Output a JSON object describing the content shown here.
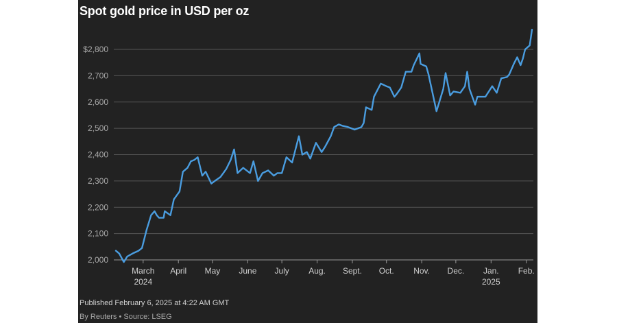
{
  "chart_data": {
    "type": "line",
    "title": "Spot gold price in USD per oz",
    "y_ticks": [
      "2,000",
      "2,100",
      "2,200",
      "2,300",
      "2,400",
      "2,500",
      "2,600",
      "2,700",
      "$2,800"
    ],
    "ylim": [
      2000,
      2800
    ],
    "x_range": [
      "2024-02-06",
      "2025-02-06"
    ],
    "month_ticks": [
      {
        "date": "2024-03-01",
        "label": "March",
        "sub": "2024"
      },
      {
        "date": "2024-04-01",
        "label": "April"
      },
      {
        "date": "2024-05-01",
        "label": "May"
      },
      {
        "date": "2024-06-01",
        "label": "June"
      },
      {
        "date": "2024-07-01",
        "label": "July"
      },
      {
        "date": "2024-08-01",
        "label": "Aug."
      },
      {
        "date": "2024-09-01",
        "label": "Sept."
      },
      {
        "date": "2024-10-01",
        "label": "Oct."
      },
      {
        "date": "2024-11-01",
        "label": "Nov."
      },
      {
        "date": "2024-12-01",
        "label": "Dec."
      },
      {
        "date": "2025-01-01",
        "label": "Jan.",
        "sub": "2025"
      },
      {
        "date": "2025-02-01",
        "label": "Feb."
      }
    ],
    "grid": "horizontal",
    "line_color": "#4a9de0",
    "series": [
      {
        "name": "",
        "points": [
          [
            "2024-02-06",
            2035
          ],
          [
            "2024-02-09",
            2024
          ],
          [
            "2024-02-13",
            1992
          ],
          [
            "2024-02-16",
            2013
          ],
          [
            "2024-02-21",
            2025
          ],
          [
            "2024-02-26",
            2035
          ],
          [
            "2024-02-29",
            2045
          ],
          [
            "2024-03-04",
            2114
          ],
          [
            "2024-03-08",
            2170
          ],
          [
            "2024-03-11",
            2185
          ],
          [
            "2024-03-13",
            2170
          ],
          [
            "2024-03-15",
            2160
          ],
          [
            "2024-03-19",
            2160
          ],
          [
            "2024-03-20",
            2185
          ],
          [
            "2024-03-25",
            2170
          ],
          [
            "2024-03-28",
            2230
          ],
          [
            "2024-04-02",
            2260
          ],
          [
            "2024-04-05",
            2335
          ],
          [
            "2024-04-09",
            2350
          ],
          [
            "2024-04-12",
            2375
          ],
          [
            "2024-04-15",
            2380
          ],
          [
            "2024-04-18",
            2390
          ],
          [
            "2024-04-22",
            2320
          ],
          [
            "2024-04-25",
            2335
          ],
          [
            "2024-04-30",
            2290
          ],
          [
            "2024-05-03",
            2300
          ],
          [
            "2024-05-08",
            2315
          ],
          [
            "2024-05-13",
            2345
          ],
          [
            "2024-05-17",
            2380
          ],
          [
            "2024-05-20",
            2420
          ],
          [
            "2024-05-23",
            2330
          ],
          [
            "2024-05-28",
            2350
          ],
          [
            "2024-06-03",
            2330
          ],
          [
            "2024-06-06",
            2375
          ],
          [
            "2024-06-10",
            2300
          ],
          [
            "2024-06-14",
            2330
          ],
          [
            "2024-06-19",
            2340
          ],
          [
            "2024-06-24",
            2320
          ],
          [
            "2024-06-27",
            2330
          ],
          [
            "2024-07-01",
            2330
          ],
          [
            "2024-07-05",
            2390
          ],
          [
            "2024-07-10",
            2370
          ],
          [
            "2024-07-16",
            2470
          ],
          [
            "2024-07-19",
            2400
          ],
          [
            "2024-07-23",
            2410
          ],
          [
            "2024-07-26",
            2385
          ],
          [
            "2024-07-31",
            2445
          ],
          [
            "2024-08-05",
            2410
          ],
          [
            "2024-08-08",
            2430
          ],
          [
            "2024-08-13",
            2470
          ],
          [
            "2024-08-16",
            2505
          ],
          [
            "2024-08-20",
            2515
          ],
          [
            "2024-08-23",
            2510
          ],
          [
            "2024-08-28",
            2505
          ],
          [
            "2024-09-03",
            2495
          ],
          [
            "2024-09-06",
            2500
          ],
          [
            "2024-09-09",
            2505
          ],
          [
            "2024-09-11",
            2520
          ],
          [
            "2024-09-13",
            2580
          ],
          [
            "2024-09-18",
            2570
          ],
          [
            "2024-09-20",
            2620
          ],
          [
            "2024-09-26",
            2670
          ],
          [
            "2024-10-01",
            2660
          ],
          [
            "2024-10-04",
            2655
          ],
          [
            "2024-10-08",
            2620
          ],
          [
            "2024-10-10",
            2630
          ],
          [
            "2024-10-14",
            2655
          ],
          [
            "2024-10-18",
            2715
          ],
          [
            "2024-10-23",
            2715
          ],
          [
            "2024-10-25",
            2740
          ],
          [
            "2024-10-30",
            2785
          ],
          [
            "2024-10-31",
            2745
          ],
          [
            "2024-11-05",
            2735
          ],
          [
            "2024-11-07",
            2705
          ],
          [
            "2024-11-08",
            2685
          ],
          [
            "2024-11-14",
            2565
          ],
          [
            "2024-11-20",
            2650
          ],
          [
            "2024-11-22",
            2710
          ],
          [
            "2024-11-26",
            2625
          ],
          [
            "2024-11-29",
            2640
          ],
          [
            "2024-12-05",
            2635
          ],
          [
            "2024-12-09",
            2660
          ],
          [
            "2024-12-11",
            2715
          ],
          [
            "2024-12-13",
            2650
          ],
          [
            "2024-12-18",
            2590
          ],
          [
            "2024-12-20",
            2620
          ],
          [
            "2024-12-27",
            2620
          ],
          [
            "2025-01-02",
            2660
          ],
          [
            "2025-01-06",
            2635
          ],
          [
            "2025-01-10",
            2690
          ],
          [
            "2025-01-15",
            2695
          ],
          [
            "2025-01-17",
            2705
          ],
          [
            "2025-01-21",
            2745
          ],
          [
            "2025-01-24",
            2770
          ],
          [
            "2025-01-27",
            2740
          ],
          [
            "2025-01-29",
            2765
          ],
          [
            "2025-01-31",
            2800
          ],
          [
            "2025-02-04",
            2815
          ],
          [
            "2025-02-06",
            2875
          ]
        ]
      }
    ]
  },
  "footer": {
    "published": "Published February 6, 2025 at 4:22 AM GMT",
    "byline": "By Reuters • Source: LSEG"
  }
}
